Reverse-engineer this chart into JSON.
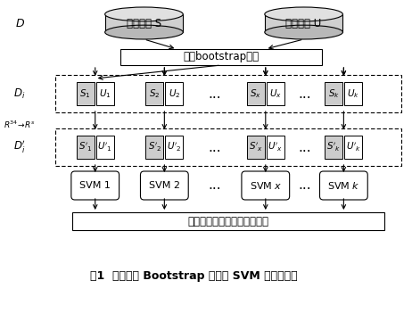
{
  "fig_width": 4.62,
  "fig_height": 3.61,
  "dpi": 100,
  "bg_color": "#ffffff",
  "cylinder_S_text": "稳定样本 S",
  "cylinder_U_text": "失稳样本 U",
  "bootstrap_text": "改连bootstrap抽样",
  "aggregate_text": "基于概率输出的预测结果集成",
  "caption": "图1  基于改连 Bootstrap 抽样的 SVM 组合分类器",
  "gray_fill": "#cccccc",
  "white_fill": "#ffffff",
  "black": "#000000"
}
